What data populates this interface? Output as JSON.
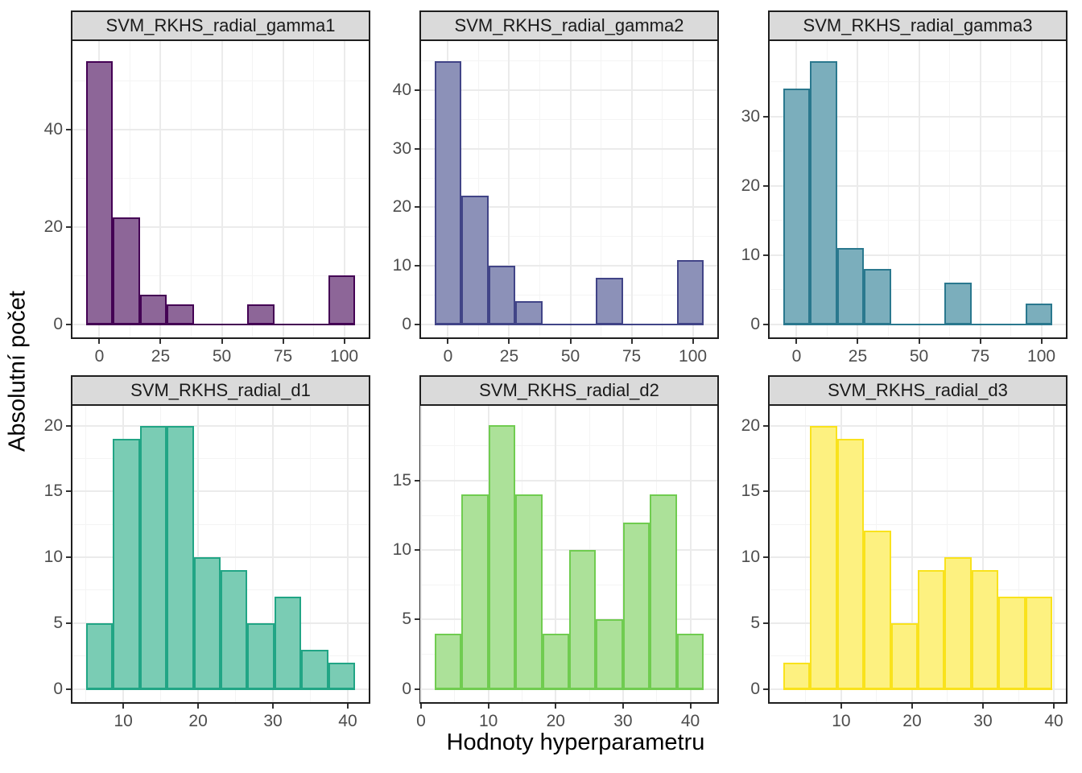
{
  "figure": {
    "xlabel": "Hodnoty hyperparametru",
    "ylabel": "Absolutní počet",
    "colors": {
      "background": "#FFFFFF",
      "strip_bg": "#DADADA",
      "panel_border": "#1F1F1F",
      "grid_major": "#EBEBEB",
      "grid_minor": "#F4F4F4",
      "tick": "#333333",
      "tick_label": "#4D4D4D"
    }
  },
  "chart_data": {
    "type": "bar",
    "variant": "histogram-facets",
    "facet_grid": {
      "rows": 2,
      "cols": 3
    },
    "xlabel": "Hodnoty hyperparametru",
    "ylabel": "Absolutní počet",
    "legend": "none",
    "grid": "on",
    "panels": [
      {
        "title": "SVM_RKHS_radial_gamma1",
        "fill": "#8D6698",
        "stroke": "#440154",
        "bin_edges": [
          -5.5,
          5.5,
          16.5,
          27.5,
          38.5,
          49.5,
          60.5,
          71.5,
          82.5,
          93.5,
          104.5
        ],
        "counts": [
          54,
          22,
          6,
          4,
          0,
          0,
          4,
          0,
          0,
          10
        ],
        "xlim": [
          -11,
          110
        ],
        "ylim": [
          -2.7,
          58.1
        ],
        "xticks": [
          0,
          25,
          50,
          75,
          100
        ],
        "yticks": [
          0,
          20,
          40
        ]
      },
      {
        "title": "SVM_RKHS_radial_gamma2",
        "fill": "#8C91B8",
        "stroke": "#414487",
        "bin_edges": [
          -5.5,
          5.5,
          16.5,
          27.5,
          38.5,
          49.5,
          60.5,
          71.5,
          82.5,
          93.5,
          104.5
        ],
        "counts": [
          45,
          22,
          10,
          4,
          0,
          0,
          8,
          0,
          0,
          11
        ],
        "xlim": [
          -11,
          110
        ],
        "ylim": [
          -2.25,
          48.4
        ],
        "xticks": [
          0,
          25,
          50,
          75,
          100
        ],
        "yticks": [
          0,
          10,
          20,
          30,
          40
        ]
      },
      {
        "title": "SVM_RKHS_radial_gamma3",
        "fill": "#7BAEBC",
        "stroke": "#2A788E",
        "bin_edges": [
          -5.5,
          5.5,
          16.5,
          27.5,
          38.5,
          49.5,
          60.5,
          71.5,
          82.5,
          93.5,
          104.5
        ],
        "counts": [
          34,
          38,
          11,
          8,
          0,
          0,
          6,
          0,
          0,
          3
        ],
        "xlim": [
          -11,
          110
        ],
        "ylim": [
          -1.9,
          40.9
        ],
        "xticks": [
          0,
          25,
          50,
          75,
          100
        ],
        "yticks": [
          0,
          10,
          20,
          30
        ]
      },
      {
        "title": "SVM_RKHS_radial_d1",
        "fill": "#7ACCB4",
        "stroke": "#21A585",
        "bin_edges": [
          5,
          8.6,
          12.2,
          15.8,
          19.4,
          23,
          26.6,
          30.2,
          33.8,
          37.4,
          41
        ],
        "counts": [
          5,
          19,
          20,
          20,
          10,
          9,
          5,
          7,
          3,
          2
        ],
        "xlim": [
          3.2,
          42.8
        ],
        "ylim": [
          -1.0,
          21.5
        ],
        "xticks": [
          10,
          20,
          30,
          40
        ],
        "yticks": [
          0,
          5,
          10,
          15,
          20
        ]
      },
      {
        "title": "SVM_RKHS_radial_d2",
        "fill": "#ACE199",
        "stroke": "#70CC50",
        "bin_edges": [
          2,
          6,
          10,
          14,
          18,
          22,
          26,
          30,
          34,
          38,
          42
        ],
        "counts": [
          4,
          14,
          19,
          14,
          4,
          10,
          5,
          12,
          14,
          4
        ],
        "xlim": [
          0,
          44
        ],
        "ylim": [
          -0.95,
          20.4
        ],
        "xticks": [
          0,
          10,
          20,
          30,
          40
        ],
        "yticks": [
          0,
          5,
          10,
          15
        ]
      },
      {
        "title": "SVM_RKHS_radial_d3",
        "fill": "#FDF180",
        "stroke": "#F9E21C",
        "bin_edges": [
          1.8,
          5.6,
          9.4,
          13.2,
          17,
          20.8,
          24.6,
          28.4,
          32.2,
          36,
          39.8
        ],
        "counts": [
          2,
          20,
          19,
          12,
          5,
          9,
          10,
          9,
          7,
          7
        ],
        "xlim": [
          -0.1,
          41.7
        ],
        "ylim": [
          -1.0,
          21.5
        ],
        "xticks": [
          10,
          20,
          30,
          40
        ],
        "yticks": [
          0,
          5,
          10,
          15,
          20
        ]
      }
    ]
  }
}
